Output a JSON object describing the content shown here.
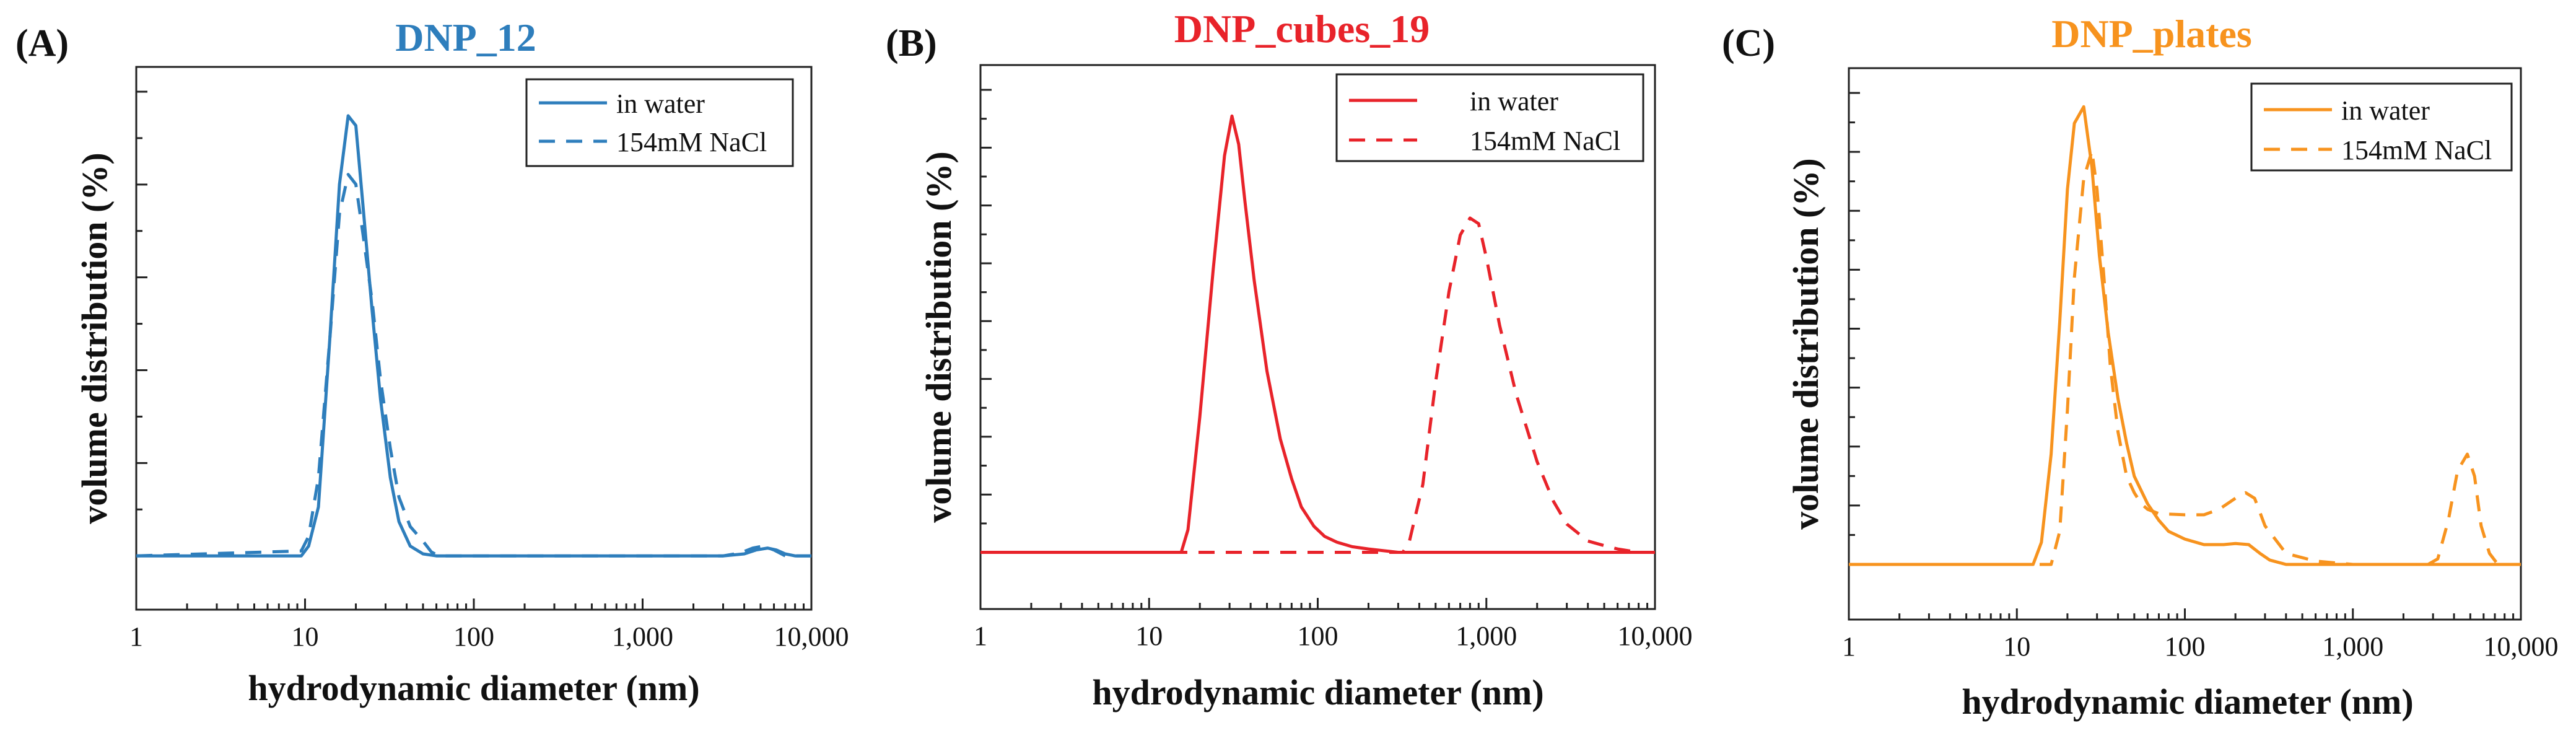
{
  "chart_data": [
    {
      "type": "line",
      "panel_label": "(A)",
      "title": "DNP_12",
      "title_color": "#2e7ebc",
      "xlabel": "hydrodynamic diameter (nm)",
      "ylabel": "volume distribution (%)",
      "xscale": "log",
      "xlim": [
        1,
        10000
      ],
      "ylim": [
        -5.5,
        50
      ],
      "y_tick_count": 6,
      "xticks": [
        {
          "value": 1,
          "label": "1"
        },
        {
          "value": 10,
          "label": "10"
        },
        {
          "value": 100,
          "label": "100"
        },
        {
          "value": 1000,
          "label": "1,000"
        },
        {
          "value": 10000,
          "label": "10,000"
        }
      ],
      "legend_position": "top-right",
      "series": [
        {
          "name": "in water",
          "color": "#2e7ebc",
          "style": "solid",
          "x": [
            1,
            9.5,
            10.5,
            12,
            14,
            16,
            18,
            20,
            22,
            25,
            28,
            32,
            36,
            42,
            50,
            60,
            100,
            1000,
            3000,
            4000,
            4700,
            5500,
            6200,
            7000,
            8000,
            10000
          ],
          "y": [
            0,
            0,
            1,
            5,
            22,
            38,
            45,
            44,
            36,
            25,
            16,
            8,
            3.5,
            1,
            0.2,
            0,
            0,
            0,
            0,
            0.2,
            0.6,
            0.8,
            0.6,
            0.2,
            0,
            0
          ]
        },
        {
          "name": "154mM NaCl",
          "color": "#2e7ebc",
          "style": "dashed",
          "x": [
            1,
            9.5,
            10.5,
            12,
            14,
            16,
            18,
            20,
            22,
            25,
            28,
            32,
            36,
            42,
            50,
            56,
            62,
            100,
            1000,
            3000,
            3800,
            4500,
            5200,
            6000,
            7000,
            10000
          ],
          "y": [
            0,
            0.5,
            2,
            8,
            22,
            35,
            39,
            38,
            33,
            26,
            18,
            11,
            6,
            3,
            1.5,
            0.4,
            0,
            0,
            0,
            0,
            0.3,
            0.8,
            1,
            0.6,
            0,
            0
          ]
        }
      ]
    },
    {
      "type": "line",
      "panel_label": "(B)",
      "title": "DNP_cubes_19",
      "title_color": "#e8232a",
      "xlabel": "hydrodynamic diameter (nm)",
      "ylabel": "volume distribution (%)",
      "xscale": "log",
      "xlim": [
        1,
        10000
      ],
      "ylim": [
        -5,
        43
      ],
      "y_tick_count": 9,
      "xticks": [
        {
          "value": 1,
          "label": "1"
        },
        {
          "value": 10,
          "label": "10"
        },
        {
          "value": 100,
          "label": "100"
        },
        {
          "value": 1000,
          "label": "1,000"
        },
        {
          "value": 10000,
          "label": "10,000"
        }
      ],
      "legend_position": "top-right",
      "series": [
        {
          "name": "in water",
          "color": "#e8232a",
          "style": "solid",
          "x": [
            1,
            15.5,
            17,
            20,
            24,
            28,
            31,
            34,
            37,
            42,
            50,
            60,
            70,
            80,
            95,
            110,
            130,
            160,
            200,
            300,
            10000
          ],
          "y": [
            0,
            0,
            2,
            12,
            25,
            35,
            38.5,
            36,
            31,
            24,
            16,
            10,
            6.5,
            4,
            2.3,
            1.4,
            0.9,
            0.5,
            0.3,
            0,
            0
          ]
        },
        {
          "name": "154mM NaCl",
          "color": "#e8232a",
          "style": "dashed",
          "x": [
            1,
            320,
            350,
            420,
            500,
            600,
            700,
            800,
            900,
            1000,
            1200,
            1500,
            2000,
            2500,
            3000,
            4000,
            5000,
            6000,
            8000,
            10000
          ],
          "y": [
            0,
            0,
            1,
            6,
            15,
            23,
            28,
            29.5,
            29,
            26,
            20,
            14,
            8,
            4.5,
            2.5,
            1,
            0.6,
            0.3,
            0,
            0
          ]
        }
      ]
    },
    {
      "type": "line",
      "panel_label": "(C)",
      "title": "DNP_plates",
      "title_color": "#f7931e",
      "xlabel": "hydrodynamic diameter (nm)",
      "ylabel": "volume distribution (%)",
      "xscale": "log",
      "xlim": [
        1,
        10000
      ],
      "ylim": [
        -5,
        45
      ],
      "y_tick_count": 9,
      "xticks": [
        {
          "value": 1,
          "label": "1"
        },
        {
          "value": 10,
          "label": "10"
        },
        {
          "value": 100,
          "label": "100"
        },
        {
          "value": 1000,
          "label": "1,000"
        },
        {
          "value": 10000,
          "label": "10,000"
        }
      ],
      "legend_position": "top-right",
      "series": [
        {
          "name": "in water",
          "color": "#f7931e",
          "style": "solid",
          "x": [
            1,
            12.5,
            14,
            16,
            18,
            20,
            22,
            25,
            28,
            31,
            35,
            40,
            45,
            50,
            60,
            70,
            80,
            100,
            130,
            170,
            200,
            240,
            280,
            320,
            400,
            1000,
            10000
          ],
          "y": [
            0,
            0,
            2,
            10,
            22,
            34,
            40,
            41.5,
            36,
            28,
            21,
            15,
            11,
            8,
            5.5,
            4,
            3,
            2.3,
            1.8,
            1.8,
            1.9,
            1.8,
            1,
            0.4,
            0,
            0,
            0
          ]
        },
        {
          "name": "154mM NaCl",
          "color": "#f7931e",
          "style": "dashed",
          "x": [
            1,
            16,
            18,
            20,
            22,
            25,
            28,
            30,
            33,
            36,
            40,
            45,
            50,
            55,
            60,
            70,
            100,
            130,
            160,
            200,
            230,
            260,
            300,
            400,
            600,
            1000,
            2800,
            3200,
            3700,
            4200,
            4800,
            5300,
            5800,
            6500,
            7300,
            8000,
            10000
          ],
          "y": [
            0,
            0,
            3,
            14,
            26,
            35,
            37.5,
            34,
            26,
            18,
            12,
            8,
            6.5,
            5.5,
            5,
            4.6,
            4.5,
            4.5,
            5,
            6,
            6.5,
            6,
            3.5,
            1,
            0.3,
            0,
            0,
            0.5,
            4,
            8.5,
            10,
            8,
            3.5,
            1,
            0,
            0,
            0
          ]
        }
      ]
    }
  ]
}
